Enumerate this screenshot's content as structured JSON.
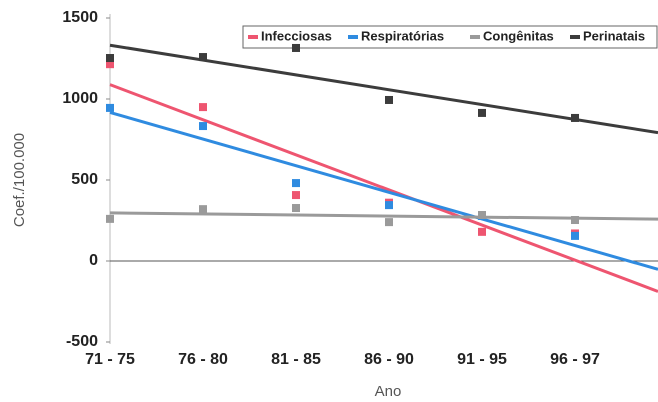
{
  "chart_data": {
    "type": "scatter",
    "x_label": "Ano",
    "y_label": "Coef./100.000",
    "categories": [
      "71 - 75",
      "76 - 80",
      "81 - 85",
      "86 - 90",
      "91 - 95",
      "96 - 97"
    ],
    "ylim": [
      -500,
      1500
    ],
    "yticks": [
      -500,
      0,
      500,
      1000,
      1500
    ],
    "trendlines": true,
    "series": [
      {
        "name": "Infecciosas",
        "color": "#ee5570",
        "values": [
          1215,
          950,
          407,
          360,
          180,
          170
        ]
      },
      {
        "name": "Respiratórias",
        "color": "#2f8be0",
        "values": [
          945,
          833,
          481,
          345,
          278,
          155
        ]
      },
      {
        "name": "Congênitas",
        "color": "#9a9a9a",
        "values": [
          260,
          320,
          327,
          240,
          284,
          253
        ]
      },
      {
        "name": "Perinatais",
        "color": "#3c3c3c",
        "values": [
          1253,
          1259,
          1315,
          994,
          914,
          883
        ]
      }
    ]
  }
}
